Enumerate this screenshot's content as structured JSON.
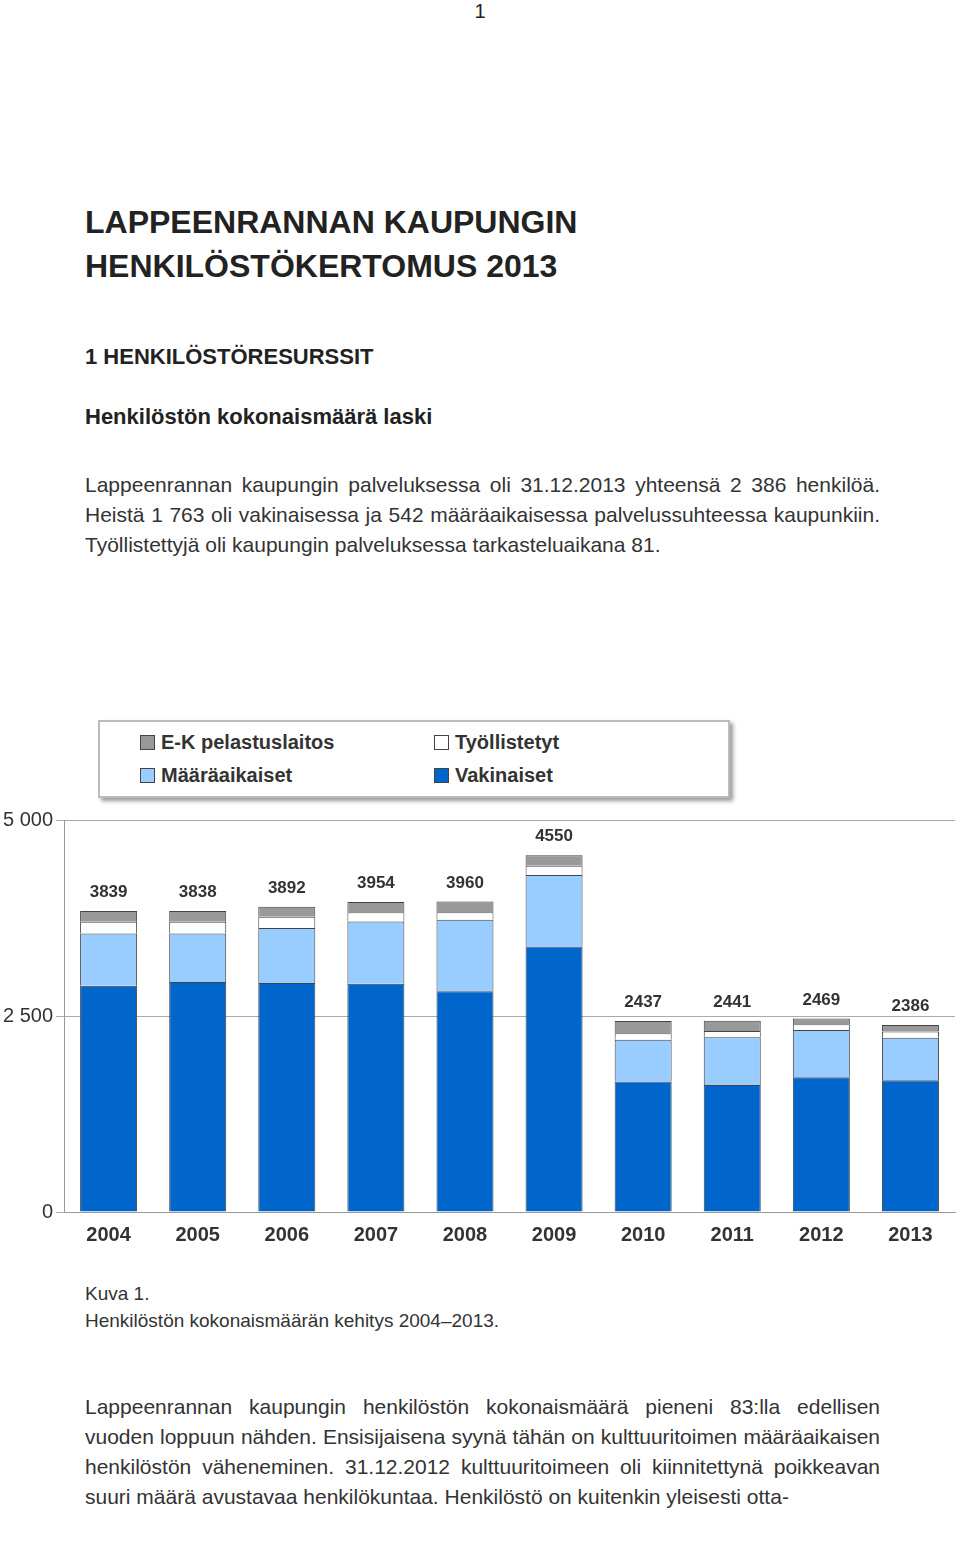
{
  "page_number": "1",
  "title": [
    "LAPPEENRANNAN KAUPUNGIN",
    "HENKILÖSTÖKERTOMUS 2013"
  ],
  "heading": "1 HENKILÖSTÖRESURSSIT",
  "subheading": "Henkilöstön kokonaismäärä laski",
  "paragraph_1": "Lappeenrannan kaupungin palveluksessa oli 31.12.2013 yhteensä 2 386 henkilöä. Heistä 1 763 oli vakinaisessa ja 542 määräaikaisessa palvelussuhteessa kaupunkiin. Työllistettyjä oli kaupungin palveluksessa tarkasteluaikana 81.",
  "chart_data": {
    "type": "bar",
    "stacked": true,
    "legend": "top",
    "grid": true,
    "categories": [
      "2004",
      "2005",
      "2006",
      "2007",
      "2008",
      "2009",
      "2010",
      "2011",
      "2012",
      "2013"
    ],
    "series": [
      {
        "name": "Vakinaiset",
        "color": "#0066cc",
        "values": [
          2886,
          2933,
          2922,
          2910,
          2815,
          3385,
          1663,
          1620,
          1720,
          1680
        ]
      },
      {
        "name": "Määräaikaiset",
        "color": "#99ccff",
        "values": [
          665,
          620,
          700,
          795,
          914,
          914,
          534,
          610,
          600,
          542
        ]
      },
      {
        "name": "Työllistetyt",
        "color": "#ffffff",
        "values": [
          150,
          150,
          143,
          119,
          95,
          119,
          83,
          80,
          75,
          81
        ]
      },
      {
        "name": "E-K pelastuslaitos",
        "color": "#999999",
        "values": [
          138,
          135,
          127,
          130,
          136,
          132,
          157,
          131,
          74,
          83
        ]
      }
    ],
    "totals": [
      3839,
      3838,
      3892,
      3954,
      3960,
      4550,
      2437,
      2441,
      2469,
      2386
    ],
    "ylim": [
      0,
      5000
    ],
    "yticks": [
      0,
      {
        "value": 2500,
        "label": "2 500"
      },
      {
        "value": 5000,
        "label": "5 000"
      }
    ]
  },
  "caption": [
    "Kuva 1.",
    "Henkilöstön kokonaismäärän kehitys 2004–2013."
  ],
  "paragraph_2": "Lappeenrannan kaupungin henkilöstön kokonaismäärä pieneni 83:lla edellisen vuoden loppuun nähden. Ensisijaisena syynä tähän on kulttuuritoimen määräaikaisen henkilöstön väheneminen. 31.12.2012 kulttuuritoimeen oli kiinnitettynä poikkeavan suuri määrä avustavaa henkilökuntaa. Henkilöstö on kuitenkin yleisesti otta-"
}
